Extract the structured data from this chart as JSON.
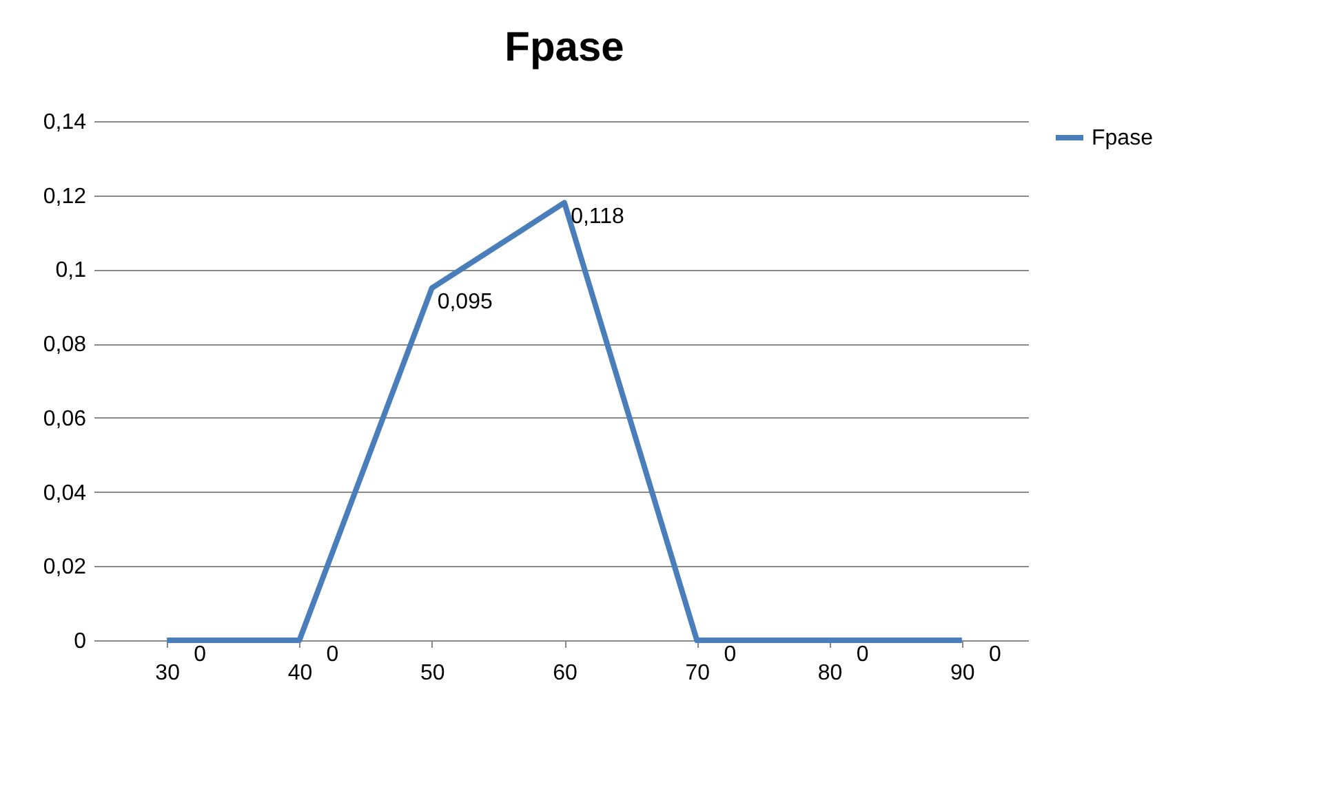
{
  "chart_data": {
    "type": "line",
    "title": "Fpase",
    "categories": [
      "30",
      "40",
      "50",
      "60",
      "70",
      "80",
      "90"
    ],
    "series": [
      {
        "name": "Fpase",
        "color": "#4a7ebb",
        "values": [
          0,
          0,
          0.095,
          0.118,
          0,
          0,
          0
        ],
        "value_labels": [
          "0",
          "0",
          "0,095",
          "0,118",
          "0",
          "0",
          "0"
        ]
      }
    ],
    "ylim": [
      0,
      0.14
    ],
    "yticks": [
      0,
      {
        "value": 0.02,
        "label": "0,02"
      },
      {
        "value": 0.04,
        "label": "0,04"
      },
      {
        "value": 0.06,
        "label": "0,06"
      },
      {
        "value": 0.08,
        "label": "0,08"
      },
      {
        "value": 0.1,
        "label": "0,1"
      },
      {
        "value": 0.12,
        "label": "0,12"
      },
      {
        "value": 0.14,
        "label": "0,14"
      }
    ],
    "grid": "y",
    "legend": "right",
    "marker": "none",
    "line_style": "solid"
  }
}
